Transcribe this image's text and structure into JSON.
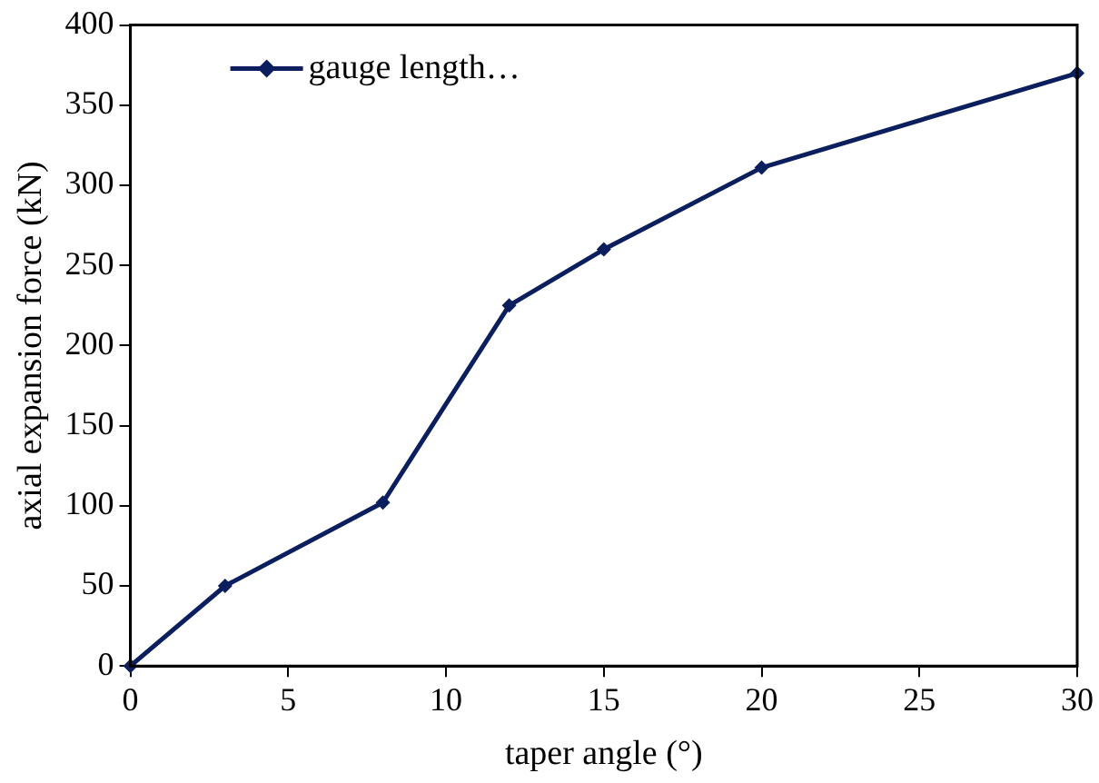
{
  "chart_data": {
    "type": "line",
    "xlabel": "taper angle (°)",
    "ylabel": "axial expansion force (kN)",
    "x": [
      0,
      3,
      8,
      12,
      15,
      20,
      30
    ],
    "series": [
      {
        "name": "gauge length…",
        "color": "#0b1f5e",
        "values": [
          0,
          50,
          102,
          225,
          260,
          311,
          370
        ]
      }
    ],
    "xlim": [
      0,
      30
    ],
    "xticks": [
      0,
      5,
      10,
      15,
      20,
      25,
      30
    ],
    "ylim": [
      0,
      400
    ],
    "yticks": [
      0,
      50,
      100,
      150,
      200,
      250,
      300,
      350,
      400
    ],
    "grid": false,
    "legend": "top left",
    "marker": "diamond",
    "line_style": "solid"
  }
}
